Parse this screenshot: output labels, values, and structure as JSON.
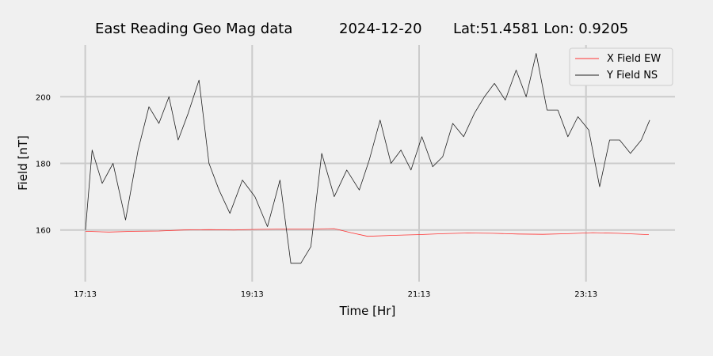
{
  "chart_data": {
    "type": "line",
    "title_parts": [
      "East Reading Geo Mag data",
      "2024-12-20",
      "Lat:51.4581  Lon: 0.9205"
    ],
    "xlabel": "Time  [Hr]",
    "ylabel": "Field  [nT]",
    "x_ticks": [
      "17:13",
      "19:13",
      "21:13",
      "23:13"
    ],
    "x_tick_hours": [
      17.217,
      19.217,
      21.217,
      23.217
    ],
    "xlim": [
      16.917,
      24.283
    ],
    "y_ticks": [
      "160",
      "180",
      "200"
    ],
    "y_tick_values": [
      160,
      180,
      200
    ],
    "ylim": [
      144.5,
      215.5
    ],
    "grid": true,
    "legend_position": "top-right",
    "series": [
      {
        "name": "X Field EW",
        "color": "#ff3333",
        "x": [
          17.22,
          17.5,
          17.8,
          18.1,
          18.4,
          18.7,
          19.0,
          19.3,
          19.6,
          19.9,
          20.2,
          20.4,
          20.6,
          20.9,
          21.2,
          21.5,
          21.8,
          22.1,
          22.4,
          22.7,
          23.0,
          23.3,
          23.6,
          23.97
        ],
        "y": [
          159.6,
          159.4,
          159.6,
          159.7,
          160.0,
          160.1,
          160.0,
          160.2,
          160.3,
          160.3,
          160.4,
          159.2,
          158.1,
          158.4,
          158.6,
          158.9,
          159.1,
          159.0,
          158.8,
          158.7,
          158.9,
          159.2,
          159.0,
          158.6
        ]
      },
      {
        "name": "Y Field NS",
        "color": "#222222",
        "x": [
          17.22,
          17.3,
          17.42,
          17.55,
          17.7,
          17.85,
          17.98,
          18.1,
          18.22,
          18.33,
          18.45,
          18.58,
          18.7,
          18.82,
          18.95,
          19.1,
          19.25,
          19.4,
          19.55,
          19.68,
          19.8,
          19.92,
          20.05,
          20.2,
          20.35,
          20.5,
          20.62,
          20.75,
          20.88,
          21.0,
          21.12,
          21.25,
          21.38,
          21.5,
          21.62,
          21.75,
          21.88,
          22.0,
          22.12,
          22.25,
          22.38,
          22.5,
          22.62,
          22.75,
          22.88,
          23.0,
          23.12,
          23.25,
          23.38,
          23.5,
          23.62,
          23.75,
          23.88,
          23.98
        ],
        "y": [
          160,
          184,
          174,
          180,
          163,
          184,
          197,
          192,
          200,
          187,
          195,
          205,
          180,
          172,
          165,
          175,
          170,
          161,
          175,
          150,
          150,
          155,
          183,
          170,
          178,
          172,
          181,
          193,
          180,
          184,
          178,
          188,
          179,
          182,
          192,
          188,
          195,
          200,
          204,
          199,
          208,
          200,
          213,
          196,
          196,
          188,
          194,
          190,
          173,
          187,
          187,
          183,
          187,
          193
        ]
      }
    ]
  }
}
